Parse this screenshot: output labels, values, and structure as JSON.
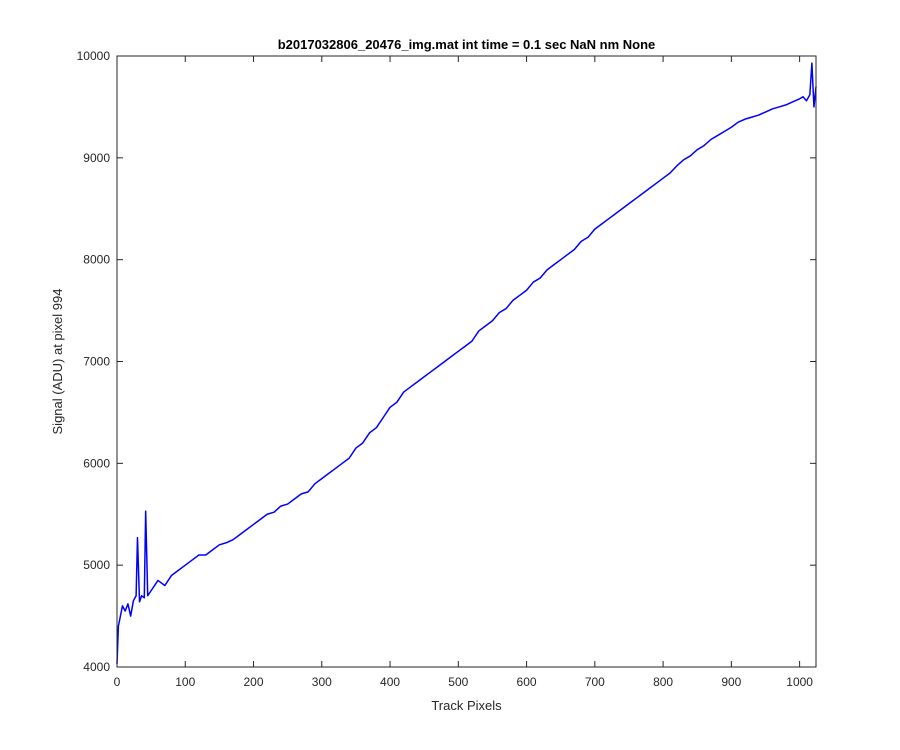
{
  "chart_data": {
    "type": "line",
    "title": "b2017032806_20476_img.mat int time = 0.1 sec  NaN nm None",
    "xlabel": "Track Pixels",
    "ylabel": "Signal (ADU) at pixel 994",
    "xlim": [
      0,
      1024
    ],
    "ylim": [
      4000,
      10000
    ],
    "xticks": [
      "0",
      "100",
      "200",
      "300",
      "400",
      "500",
      "600",
      "700",
      "800",
      "900",
      "1000"
    ],
    "yticks": [
      "4000",
      "5000",
      "6000",
      "7000",
      "8000",
      "9000",
      "10000"
    ],
    "grid": false,
    "series": [
      {
        "color": "#0000ff",
        "x": [
          0,
          2,
          5,
          8,
          12,
          16,
          20,
          24,
          28,
          30,
          33,
          36,
          40,
          42,
          45,
          50,
          55,
          60,
          70,
          80,
          90,
          100,
          110,
          120,
          130,
          140,
          150,
          160,
          170,
          180,
          190,
          200,
          210,
          220,
          230,
          240,
          250,
          260,
          270,
          280,
          290,
          300,
          310,
          320,
          330,
          340,
          350,
          360,
          370,
          380,
          390,
          400,
          410,
          420,
          430,
          440,
          450,
          460,
          470,
          480,
          490,
          500,
          510,
          520,
          530,
          540,
          550,
          560,
          570,
          580,
          590,
          600,
          610,
          620,
          630,
          640,
          650,
          660,
          670,
          680,
          690,
          700,
          710,
          720,
          730,
          740,
          750,
          760,
          770,
          780,
          790,
          800,
          810,
          820,
          830,
          840,
          850,
          860,
          870,
          880,
          890,
          900,
          910,
          920,
          930,
          940,
          950,
          960,
          970,
          980,
          990,
          1000,
          1005,
          1010,
          1015,
          1018,
          1021,
          1024
        ],
        "y": [
          4030,
          4400,
          4500,
          4600,
          4550,
          4620,
          4500,
          4650,
          4700,
          5270,
          4640,
          4700,
          4680,
          5530,
          4700,
          4750,
          4800,
          4850,
          4800,
          4900,
          4950,
          5000,
          5050,
          5100,
          5100,
          5150,
          5200,
          5220,
          5250,
          5300,
          5350,
          5400,
          5450,
          5500,
          5520,
          5580,
          5600,
          5650,
          5700,
          5720,
          5800,
          5850,
          5900,
          5950,
          6000,
          6050,
          6150,
          6200,
          6300,
          6350,
          6450,
          6550,
          6600,
          6700,
          6750,
          6800,
          6850,
          6900,
          6950,
          7000,
          7050,
          7100,
          7150,
          7200,
          7300,
          7350,
          7400,
          7480,
          7520,
          7600,
          7650,
          7700,
          7780,
          7820,
          7900,
          7950,
          8000,
          8050,
          8100,
          8180,
          8220,
          8300,
          8350,
          8400,
          8450,
          8500,
          8550,
          8600,
          8650,
          8700,
          8750,
          8800,
          8850,
          8920,
          8980,
          9020,
          9080,
          9120,
          9180,
          9220,
          9260,
          9300,
          9350,
          9380,
          9400,
          9420,
          9450,
          9480,
          9500,
          9520,
          9550,
          9580,
          9600,
          9560,
          9620,
          9930,
          9500,
          9700
        ]
      }
    ]
  }
}
